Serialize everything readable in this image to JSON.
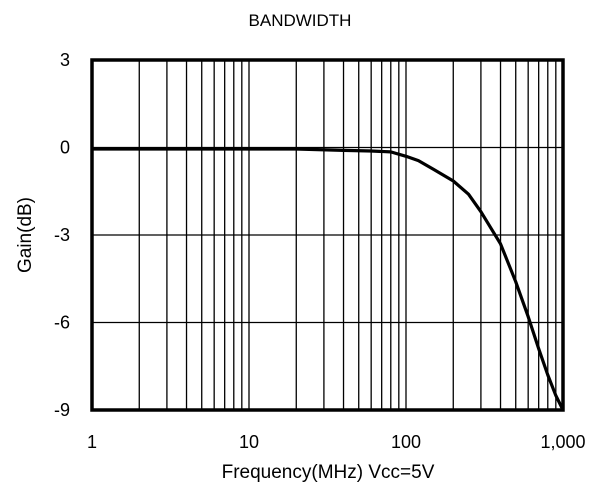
{
  "chart_data": {
    "type": "line",
    "title": "BANDWIDTH",
    "xlabel": "Frequency(MHz) Vcc=5V",
    "ylabel": "Gain(dB)",
    "x_scale": "log",
    "xlim": [
      1,
      1000
    ],
    "ylim": [
      -9,
      3
    ],
    "x_ticks": [
      1,
      10,
      100,
      1000
    ],
    "x_tick_labels": [
      "1",
      "10",
      "100",
      "1,000"
    ],
    "y_ticks": [
      3,
      0,
      -3,
      -6,
      -9
    ],
    "y_tick_labels": [
      "3",
      "0",
      "-3",
      "-6",
      "-9"
    ],
    "grid": true,
    "series": [
      {
        "x": [
          1,
          2,
          5,
          10,
          20,
          40,
          60,
          80,
          100,
          120,
          150,
          200,
          250,
          300,
          400,
          500,
          600,
          700,
          800,
          900,
          1000
        ],
        "y": [
          -0.05,
          -0.05,
          -0.05,
          -0.05,
          -0.05,
          -0.1,
          -0.12,
          -0.15,
          -0.3,
          -0.45,
          -0.75,
          -1.15,
          -1.6,
          -2.2,
          -3.3,
          -4.6,
          -5.8,
          -6.9,
          -7.8,
          -8.5,
          -9.0
        ],
        "color": "#000000"
      }
    ]
  }
}
